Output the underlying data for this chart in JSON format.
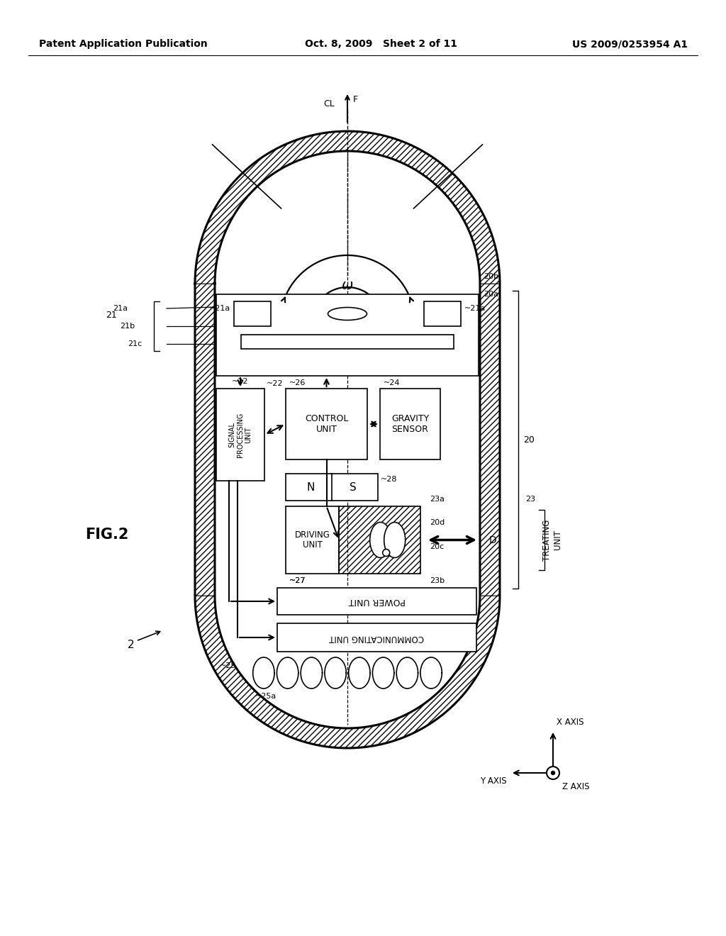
{
  "bg_color": "#ffffff",
  "header_left": "Patent Application Publication",
  "header_center": "Oct. 8, 2009   Sheet 2 of 11",
  "header_right": "US 2009/0253954 A1",
  "fig_label": "FIG.2",
  "capsule_label": "2"
}
